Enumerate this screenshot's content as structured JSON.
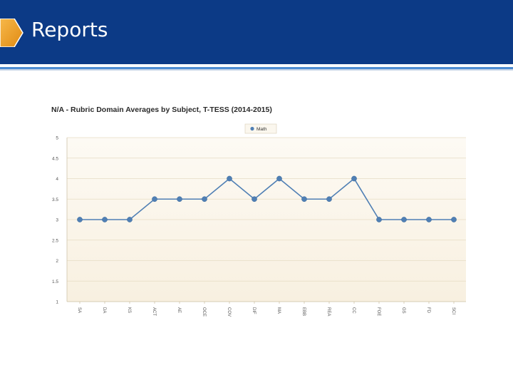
{
  "header": {
    "title": "Reports",
    "background": "#0c3a86",
    "tab_color": "#f0a020"
  },
  "chart_data": {
    "type": "line",
    "title": "N/A - Rubric Domain Averages by Subject, T-TESS (2014-2015)",
    "categories": [
      "SA",
      "DA",
      "KS",
      "ACT",
      "AE",
      "OCE",
      "COV",
      "DIF",
      "MA",
      "EBB",
      "REA",
      "CC",
      "FOE",
      "GS",
      "FD",
      "SCI"
    ],
    "series": [
      {
        "name": "Math",
        "values": [
          3,
          3,
          3,
          3.5,
          3.5,
          3.5,
          4,
          3.5,
          4,
          3.5,
          3.5,
          4,
          3,
          3,
          3,
          3
        ],
        "color": "#4f7fb4"
      }
    ],
    "yticks": [
      "1",
      "1.5",
      "2",
      "2.5",
      "3",
      "3.5",
      "4",
      "4.5",
      "5"
    ],
    "ylim": [
      1,
      5
    ],
    "legend": "top-center",
    "grid": true,
    "plot_background": "#f8f0e0"
  }
}
